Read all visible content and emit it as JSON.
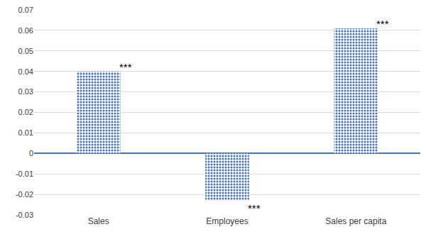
{
  "chart_data": {
    "type": "bar",
    "categories": [
      "Sales",
      "Employees",
      "Sales per capita"
    ],
    "values": [
      0.04,
      -0.023,
      0.061
    ],
    "annotations": [
      "***",
      "***",
      "***"
    ],
    "color": "#4472c4",
    "ylim": [
      -0.03,
      0.07
    ],
    "yticks": [
      -0.03,
      -0.02,
      -0.01,
      0,
      0.01,
      0.02,
      0.03,
      0.04,
      0.05,
      0.06,
      0.07
    ],
    "grid": true
  }
}
